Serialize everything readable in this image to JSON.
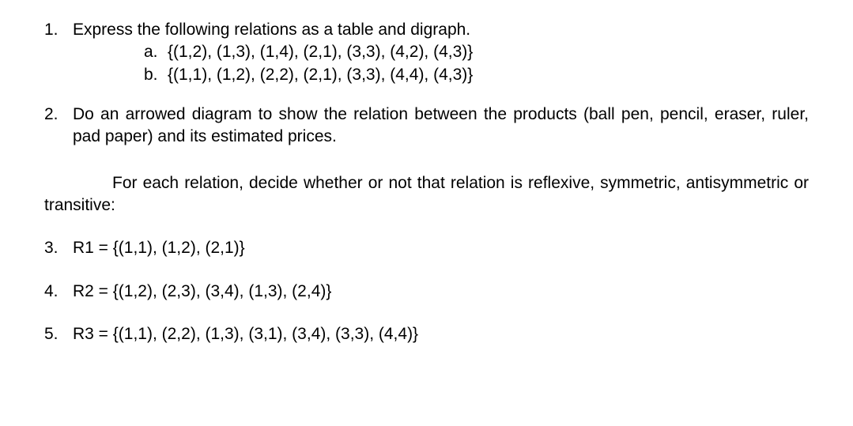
{
  "q1": {
    "number": "1.",
    "text": "Express the following relations as a table and digraph.",
    "sub": [
      {
        "letter": "a.",
        "text": "{(1,2), (1,3), (1,4), (2,1), (3,3), (4,2), (4,3)}"
      },
      {
        "letter": "b.",
        "text": "{(1,1), (1,2), (2,2), (2,1), (3,3), (4,4), (4,3)}"
      }
    ]
  },
  "q2": {
    "number": "2.",
    "text": "Do an arrowed diagram to show the relation between the products (ball pen, pencil, eraser, ruler, pad paper) and its estimated prices."
  },
  "intro": "For each relation, decide whether or not that relation is reflexive, symmetric, antisymmetric or transitive:",
  "q3": {
    "number": "3.",
    "text": "R1 = {(1,1), (1,2), (2,1)}"
  },
  "q4": {
    "number": "4.",
    "text": "R2 = {(1,2), (2,3), (3,4), (1,3), (2,4)}"
  },
  "q5": {
    "number": "5.",
    "text": "R3 = {(1,1), (2,2), (1,3), (3,1), (3,4), (3,3), (4,4)}"
  }
}
